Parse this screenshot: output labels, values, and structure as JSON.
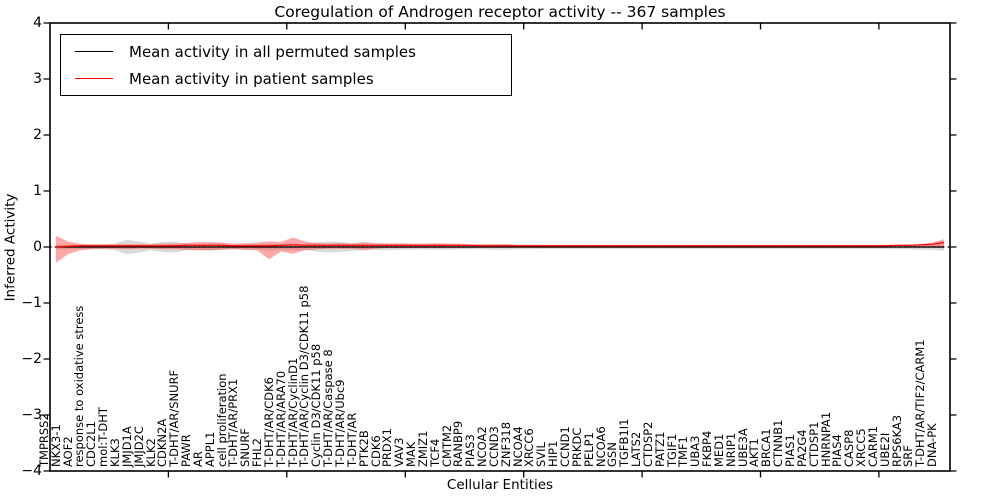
{
  "chart_data": {
    "type": "line",
    "title": "Coregulation of Androgen receptor activity -- 367 samples",
    "xlabel": "Cellular Entities",
    "ylabel": "Inferred Activity",
    "ylim": [
      -4,
      4
    ],
    "yticks": [
      4,
      3,
      2,
      1,
      0,
      -1,
      -2,
      -3,
      -4
    ],
    "ytick_labels": [
      "4",
      "3",
      "2",
      "1",
      "0",
      "−1",
      "−2",
      "−3",
      "−4"
    ],
    "xtick_positions": [
      10,
      20,
      30,
      40,
      50,
      60,
      70
    ],
    "legend_position": "upper left",
    "grid": false,
    "zero_line": "dotted",
    "categories": [
      "TMPRSS2",
      "NKX3-1",
      "AOF2",
      "response to oxidative stress",
      "CDC2L1",
      "mol:T-DHT",
      "KLK3",
      "JMJD1A",
      "JMJD2C",
      "KLK2",
      "CDKN2A",
      "T-DHT/AR/SNURF",
      "PAWR",
      "AR",
      "APPL1",
      "cell proliferation",
      "T-DHT/AR/PRX1",
      "SNURF",
      "FHL2",
      "T-DHT/AR/CDK6",
      "T-DHT/AR/ARA70",
      "T-DHT/AR/CyclinD1",
      "T-DHT/AR/Cyclin D3/CDK11 p58",
      "Cyclin D3/CDK11 p58",
      "T-DHT/AR/Caspase 8",
      "T-DHT/AR/Ubc9",
      "T-DHT/AR",
      "PTK2B",
      "CDK6",
      "PRDX1",
      "VAV3",
      "MAK",
      "ZMIZ1",
      "TCF4",
      "CMTM2",
      "RANBP9",
      "PIAS3",
      "NCOA2",
      "CCND3",
      "ZNF318",
      "NCOA4",
      "XRCC6",
      "SVIL",
      "HIP1",
      "CCND1",
      "PRKDC",
      "PELP1",
      "NCOA6",
      "GSN",
      "TGFB1I1",
      "LATS2",
      "CTDSP2",
      "PATZ1",
      "TGIF1",
      "TMF1",
      "UBA3",
      "FKBP4",
      "MED1",
      "NRIP1",
      "UBE3A",
      "AKT1",
      "BRCA1",
      "CTNNB1",
      "PIAS1",
      "PA2G4",
      "CTDSP1",
      "HNRNPA1",
      "PIAS4",
      "CASP8",
      "XRCC5",
      "CARM1",
      "UBE2I",
      "RPS6KA3",
      "SRF",
      "T-DHT/AR/TIF2/CARM1",
      "DNA-PK"
    ],
    "series": [
      {
        "name": "Mean activity in all permuted samples",
        "color": "#000000",
        "values": [
          0,
          0,
          0,
          0,
          0,
          0,
          0,
          0,
          0,
          0,
          0,
          0,
          0,
          0,
          0,
          0,
          0,
          0,
          0,
          0,
          0,
          0,
          0,
          0,
          0,
          0,
          0,
          0,
          0,
          0,
          0,
          0,
          0,
          0,
          0,
          0,
          0,
          0,
          0,
          0,
          0,
          0,
          0,
          0,
          0,
          0,
          0,
          0,
          0,
          0,
          0,
          0,
          0,
          0,
          0,
          0,
          0,
          0,
          0,
          0,
          0,
          0,
          0,
          0,
          0,
          0,
          0,
          0,
          0,
          0,
          0,
          0,
          0,
          0,
          0,
          0
        ]
      },
      {
        "name": "Mean activity in patient samples",
        "color": "#ff0000",
        "values": [
          0.0,
          0.01,
          0.02,
          0.02,
          0.02,
          0.02,
          0.02,
          0.02,
          0.02,
          0.02,
          0.02,
          0.03,
          0.03,
          0.03,
          0.03,
          0.02,
          0.02,
          0.02,
          0.02,
          0.03,
          0.04,
          0.03,
          0.03,
          0.03,
          0.03,
          0.03,
          0.03,
          0.03,
          0.03,
          0.03,
          0.03,
          0.03,
          0.03,
          0.03,
          0.03,
          0.03,
          0.02,
          0.02,
          0.02,
          0.02,
          0.02,
          0.02,
          0.02,
          0.02,
          0.02,
          0.02,
          0.02,
          0.02,
          0.02,
          0.02,
          0.02,
          0.02,
          0.02,
          0.02,
          0.02,
          0.02,
          0.02,
          0.02,
          0.02,
          0.02,
          0.02,
          0.02,
          0.02,
          0.02,
          0.02,
          0.02,
          0.02,
          0.02,
          0.02,
          0.02,
          0.02,
          0.03,
          0.03,
          0.04,
          0.05,
          0.08
        ]
      }
    ],
    "bands": [
      {
        "name": "permuted-samples-band",
        "fill": "rgba(130,130,130,0.30)",
        "hi": [
          0.04,
          0.04,
          0.04,
          0.04,
          0.04,
          0.06,
          0.13,
          0.1,
          0.06,
          0.09,
          0.1,
          0.06,
          0.05,
          0.06,
          0.05,
          0.04,
          0.05,
          0.05,
          0.06,
          0.05,
          0.06,
          0.05,
          0.08,
          0.1,
          0.09,
          0.07,
          0.06,
          0.05,
          0.06,
          0.05,
          0.05,
          0.04,
          0.05,
          0.05,
          0.04,
          0.04,
          0.04,
          0.05,
          0.05,
          0.04,
          0.04,
          0.035,
          0.035,
          0.035,
          0.035,
          0.035,
          0.035,
          0.035,
          0.035,
          0.035,
          0.035,
          0.035,
          0.035,
          0.035,
          0.035,
          0.035,
          0.035,
          0.035,
          0.035,
          0.035,
          0.035,
          0.035,
          0.035,
          0.035,
          0.035,
          0.035,
          0.035,
          0.035,
          0.035,
          0.035,
          0.035,
          0.04,
          0.04,
          0.05,
          0.05,
          0.07
        ],
        "lo": [
          -0.04,
          -0.04,
          -0.04,
          -0.04,
          -0.04,
          -0.06,
          -0.13,
          -0.1,
          -0.06,
          -0.09,
          -0.1,
          -0.06,
          -0.05,
          -0.06,
          -0.05,
          -0.04,
          -0.05,
          -0.05,
          -0.06,
          -0.05,
          -0.06,
          -0.05,
          -0.08,
          -0.1,
          -0.09,
          -0.07,
          -0.06,
          -0.05,
          -0.06,
          -0.05,
          -0.05,
          -0.04,
          -0.05,
          -0.05,
          -0.04,
          -0.04,
          -0.04,
          -0.05,
          -0.05,
          -0.04,
          -0.04,
          -0.035,
          -0.035,
          -0.035,
          -0.035,
          -0.035,
          -0.035,
          -0.035,
          -0.035,
          -0.035,
          -0.035,
          -0.035,
          -0.035,
          -0.035,
          -0.035,
          -0.035,
          -0.035,
          -0.035,
          -0.035,
          -0.035,
          -0.035,
          -0.035,
          -0.035,
          -0.035,
          -0.035,
          -0.035,
          -0.035,
          -0.035,
          -0.035,
          -0.035,
          -0.035,
          -0.04,
          -0.04,
          -0.05,
          -0.05,
          -0.07
        ]
      },
      {
        "name": "patient-samples-band",
        "fill": "rgba(255,25,25,0.38)",
        "hi": [
          0.2,
          0.1,
          0.06,
          0.05,
          0.05,
          0.05,
          0.05,
          0.05,
          0.05,
          0.06,
          0.06,
          0.07,
          0.09,
          0.09,
          0.08,
          0.06,
          0.07,
          0.08,
          0.1,
          0.09,
          0.17,
          0.1,
          0.07,
          0.06,
          0.07,
          0.06,
          0.09,
          0.07,
          0.06,
          0.07,
          0.06,
          0.06,
          0.07,
          0.06,
          0.06,
          0.05,
          0.05,
          0.05,
          0.05,
          0.04,
          0.04,
          0.04,
          0.04,
          0.04,
          0.04,
          0.04,
          0.04,
          0.04,
          0.04,
          0.04,
          0.04,
          0.04,
          0.04,
          0.04,
          0.04,
          0.04,
          0.04,
          0.04,
          0.04,
          0.04,
          0.04,
          0.04,
          0.04,
          0.04,
          0.04,
          0.04,
          0.04,
          0.04,
          0.04,
          0.04,
          0.04,
          0.04,
          0.04,
          0.05,
          0.08,
          0.14
        ],
        "lo": [
          -0.28,
          -0.13,
          -0.06,
          -0.04,
          -0.03,
          -0.03,
          -0.04,
          -0.03,
          -0.03,
          -0.04,
          -0.04,
          -0.05,
          -0.06,
          -0.06,
          -0.05,
          -0.04,
          -0.05,
          -0.06,
          -0.22,
          -0.08,
          -0.12,
          -0.06,
          -0.04,
          -0.03,
          -0.03,
          -0.03,
          -0.05,
          -0.03,
          -0.02,
          -0.02,
          -0.02,
          -0.02,
          -0.02,
          -0.02,
          -0.02,
          -0.02,
          -0.01,
          -0.01,
          -0.01,
          -0.01,
          -0.01,
          -0.01,
          -0.01,
          -0.01,
          -0.01,
          -0.01,
          -0.01,
          -0.01,
          -0.01,
          -0.01,
          -0.01,
          -0.01,
          -0.01,
          -0.01,
          -0.01,
          -0.01,
          -0.01,
          -0.01,
          -0.01,
          -0.01,
          -0.01,
          -0.01,
          -0.01,
          -0.01,
          -0.01,
          -0.01,
          -0.01,
          -0.01,
          -0.01,
          -0.01,
          -0.01,
          -0.01,
          -0.01,
          -0.01,
          -0.01,
          -0.02
        ]
      }
    ]
  }
}
